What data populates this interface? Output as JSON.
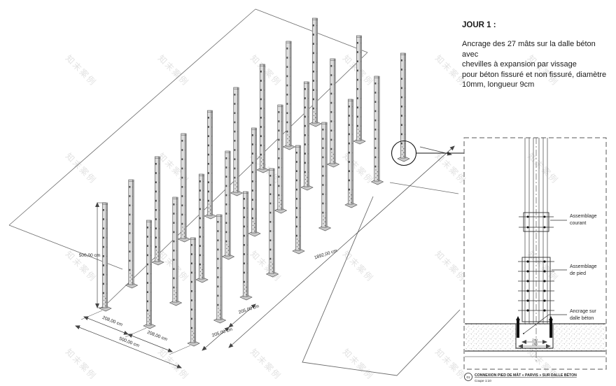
{
  "watermark": {
    "text": "知末案例"
  },
  "note": {
    "title": "JOUR 1 :",
    "body_lines": [
      "Ancrage des 27 mâts sur la dalle béton avec",
      "chevilles à expansion par vissage",
      "pour béton fissuré et non fissuré, diamètre",
      "10mm, longueur 9cm"
    ]
  },
  "iso_view": {
    "mast_count": 27,
    "grid": {
      "rows": 3,
      "cols": 9
    },
    "dims": {
      "mast_height": "500,00 cm",
      "row_spacing": [
        "208,00 cm",
        "208,00 cm"
      ],
      "row_total": "500,00 cm",
      "col_spacing": [
        "205,00 cm",
        "205,00 cm"
      ],
      "length_total": "1892,00 cm"
    }
  },
  "detail_view": {
    "labels": {
      "courant": [
        "Assemblage",
        "courant"
      ],
      "pied": [
        "Assemblage",
        "de pied"
      ],
      "ancrage": [
        "Ancrage sur",
        "dalle béton"
      ]
    },
    "dims": [
      "240",
      "260"
    ],
    "titleblock": {
      "number": "01",
      "title": "CONNEXION PIED DE MÂT « PARVIS » SUR DALLE BÉTON",
      "scale": "Coupe 1:10"
    }
  },
  "colors": {
    "line": "#555555",
    "dim_line": "#444444",
    "dim_text": "#222222",
    "mast_fill": "#dcdcdc",
    "mast_side": "#a8a8a8",
    "mast_stroke": "#4a4a4a",
    "plate_fill": "#c9c9c9",
    "concrete_dot": "#9a9a9a",
    "panel_dash": "#5a5a5a",
    "black": "#111111"
  }
}
